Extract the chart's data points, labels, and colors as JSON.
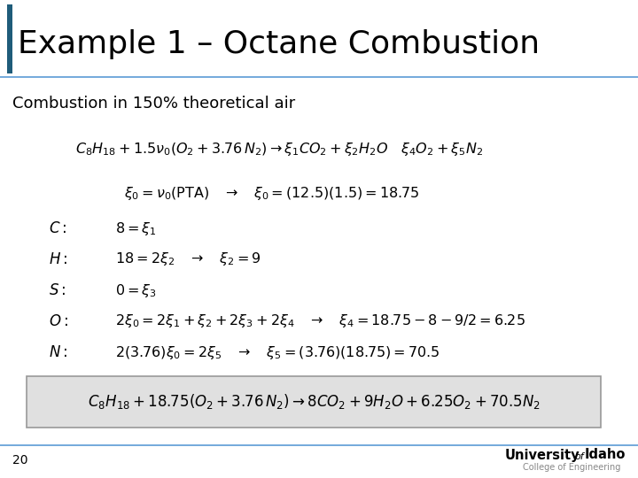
{
  "title": "Example 1 – Octane Combustion",
  "title_bar_color": "#1F5C7A",
  "background_color": "#FFFFFF",
  "subtitle": "Combustion in 150% theoretical air",
  "page_number": "20",
  "footer_line_color": "#4472C4",
  "box_fill_color": "#E0E0E0",
  "box_edge_color": "#999999"
}
